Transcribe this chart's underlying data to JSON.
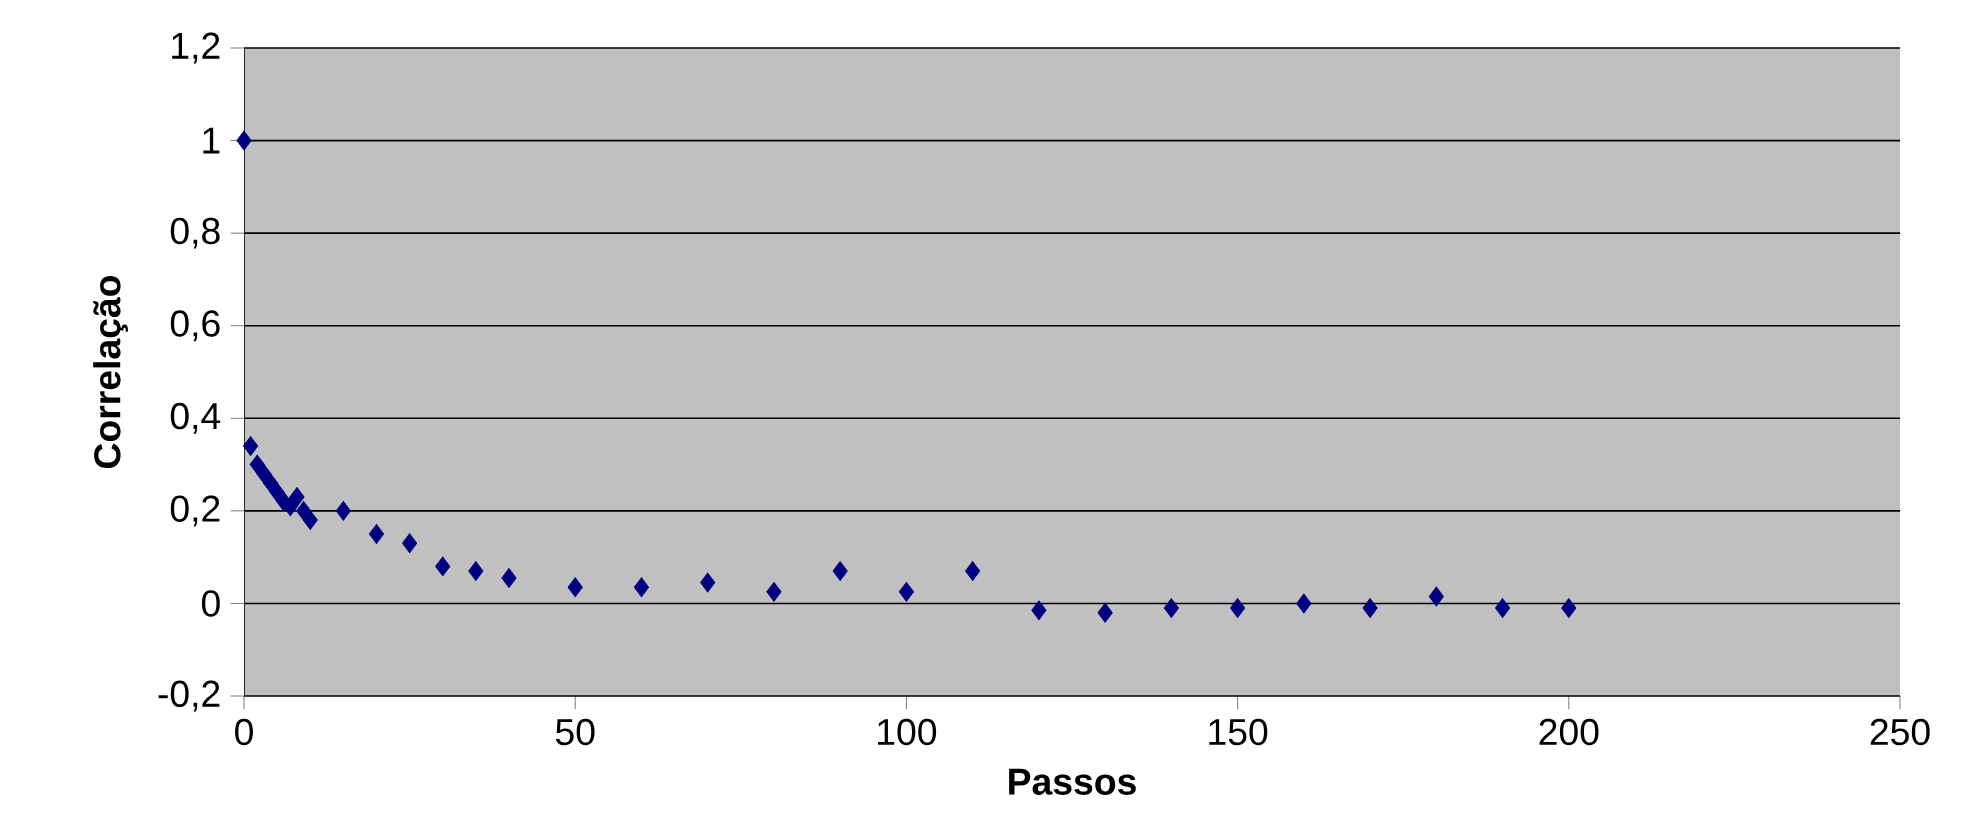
{
  "chart_data": {
    "type": "scatter",
    "xlabel": "Passos",
    "ylabel": "Correlação",
    "x": [
      0,
      1,
      2,
      3,
      4,
      5,
      6,
      7,
      8,
      9,
      10,
      15,
      20,
      25,
      30,
      35,
      40,
      50,
      60,
      70,
      80,
      90,
      100,
      110,
      120,
      130,
      140,
      150,
      160,
      170,
      180,
      190,
      200
    ],
    "values": [
      1,
      0.34,
      0.3,
      0.28,
      0.26,
      0.24,
      0.22,
      0.21,
      0.23,
      0.2,
      0.18,
      0.2,
      0.15,
      0.13,
      0.08,
      0.07,
      0.055,
      0.035,
      0.035,
      0.045,
      0.025,
      0.07,
      0.025,
      0.07,
      -0.015,
      -0.02,
      -0.01,
      -0.01,
      0,
      -0.01,
      0.015,
      -0.01,
      -0.01
    ],
    "color": "#000080",
    "marker": "diamond",
    "grid": "y",
    "xlim": [
      0,
      250
    ],
    "xticks": [
      0,
      50,
      100,
      150,
      200,
      250
    ],
    "ylim": [
      -0.2,
      1.2
    ],
    "yticks": [
      {
        "value": -0.2,
        "label": "-0,2"
      },
      0,
      {
        "value": 0.2,
        "label": "0,2"
      },
      {
        "value": 0.4,
        "label": "0,4"
      },
      {
        "value": 0.6,
        "label": "0,6"
      },
      {
        "value": 0.8,
        "label": "0,8"
      },
      1,
      {
        "value": 1.2,
        "label": "1,2"
      }
    ]
  }
}
